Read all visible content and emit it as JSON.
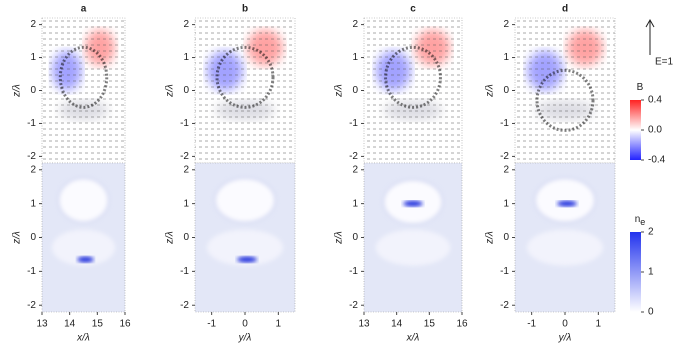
{
  "rows": {
    "ylabel": "z/λ",
    "ylim": [
      -2.2,
      2.2
    ],
    "yticks": [
      -2,
      -1,
      0,
      1,
      2
    ]
  },
  "panels": [
    {
      "label": "a",
      "xlabel": "x/λ",
      "xlim": [
        13,
        16
      ],
      "xticks": [
        13,
        14,
        15,
        16
      ]
    },
    {
      "label": "b",
      "xlabel": "y/λ",
      "xlim": [
        -1.5,
        1.5
      ],
      "xticks": [
        -1,
        0,
        1
      ]
    },
    {
      "label": "c",
      "xlabel": "x/λ",
      "xlim": [
        13,
        16
      ],
      "xticks": [
        13,
        14,
        15,
        16
      ]
    },
    {
      "label": "d",
      "xlabel": "y/λ",
      "xlim": [
        -1.5,
        1.5
      ],
      "xticks": [
        -1,
        0,
        1
      ]
    }
  ],
  "arrow": {
    "label": "E=1"
  },
  "colorbars": [
    {
      "title": "B",
      "ticks": [
        {
          "value": 0.4,
          "label": "0.4"
        },
        {
          "value": 0,
          "label": "0.0"
        },
        {
          "value": -0.4,
          "label": "-0.4"
        }
      ],
      "lim": [
        -0.4,
        0.4
      ]
    },
    {
      "title": "n",
      "subscript": "e",
      "ticks": [
        2,
        1,
        0
      ],
      "lim": [
        0,
        2
      ]
    }
  ]
}
